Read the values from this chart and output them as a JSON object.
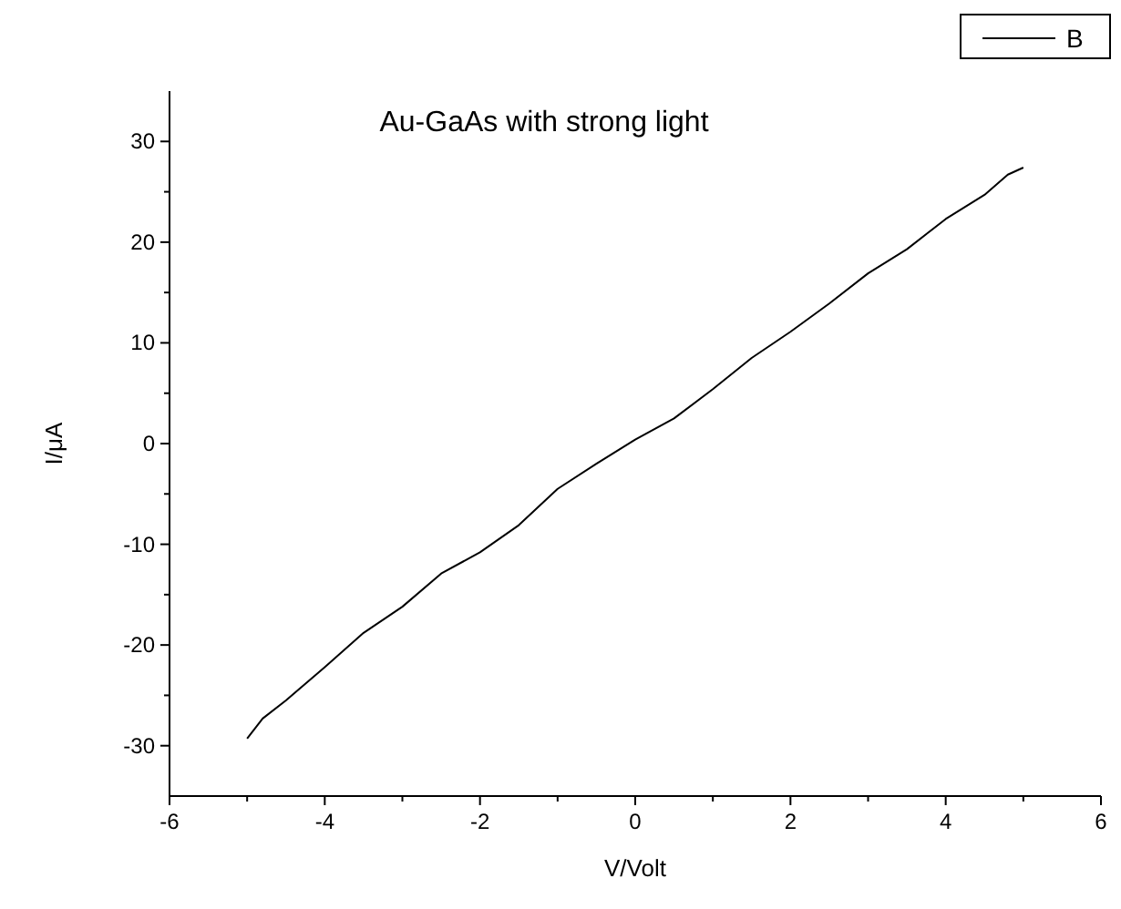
{
  "chart_data": {
    "type": "line",
    "title": "Au-GaAs with strong light",
    "xlabel": "V/Volt",
    "ylabel": "I/μA",
    "xlim": [
      -6,
      6
    ],
    "xticks": [
      -6,
      -4,
      -2,
      0,
      2,
      4,
      6
    ],
    "ylim": [
      -35,
      35
    ],
    "yticks": [
      -30,
      -20,
      -10,
      0,
      10,
      20,
      30
    ],
    "legend": "top right",
    "grid": false,
    "series": [
      {
        "name": "B",
        "color": "#000000",
        "x": [
          -5,
          -4.8,
          -4.5,
          -4,
          -3.5,
          -3,
          -2.5,
          -2,
          -1.5,
          -1,
          -0.5,
          0,
          0.5,
          1,
          1.5,
          2,
          2.5,
          3,
          3.5,
          4,
          4.5,
          4.8,
          5
        ],
        "values": [
          -29.3,
          -27.3,
          -25.5,
          -22.2,
          -18.8,
          -16.2,
          -12.9,
          -10.8,
          -8.1,
          -4.5,
          -2.0,
          0.4,
          2.5,
          5.4,
          8.5,
          11.1,
          13.9,
          16.9,
          19.3,
          22.3,
          24.7,
          26.7,
          27.4
        ]
      }
    ]
  }
}
